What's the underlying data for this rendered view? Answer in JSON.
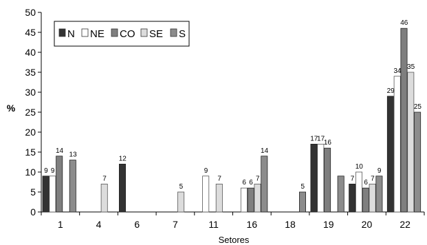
{
  "chart_data": {
    "type": "bar",
    "xlabel": "Setores",
    "ylabel": "%",
    "ylim": [
      0,
      50
    ],
    "yticks": [
      0,
      5,
      10,
      15,
      20,
      25,
      30,
      35,
      40,
      45,
      50
    ],
    "grid": false,
    "legend_position": "top-left",
    "categories": [
      "1",
      "4",
      "6",
      "7",
      "11",
      "16",
      "18",
      "19",
      "20",
      "22"
    ],
    "series": [
      {
        "name": "N",
        "color": "#333333",
        "values": [
          9,
          0,
          12,
          0,
          0,
          0,
          0,
          17,
          7,
          29
        ]
      },
      {
        "name": "NE",
        "color": "#ffffff",
        "values": [
          9,
          0,
          0,
          0,
          9,
          6,
          0,
          17,
          10,
          34
        ]
      },
      {
        "name": "CO",
        "color": "#7f7f7f",
        "values": [
          14,
          0,
          0,
          0,
          0,
          6,
          0,
          16,
          6,
          46
        ]
      },
      {
        "name": "SE",
        "color": "#dcdcdc",
        "values": [
          0,
          7,
          0,
          5,
          7,
          7,
          0,
          0,
          7,
          35
        ]
      },
      {
        "name": "S",
        "color": "#8c8c8c",
        "values": [
          13,
          0,
          0,
          0,
          0,
          14,
          5,
          9,
          9,
          25
        ]
      }
    ],
    "labels_shown": [
      [
        true,
        false,
        true,
        false,
        false,
        false,
        false,
        true,
        true,
        true
      ],
      [
        true,
        false,
        false,
        false,
        true,
        true,
        false,
        true,
        true,
        true
      ],
      [
        true,
        false,
        false,
        false,
        false,
        true,
        false,
        true,
        true,
        true
      ],
      [
        false,
        true,
        false,
        true,
        true,
        true,
        false,
        false,
        true,
        true
      ],
      [
        true,
        false,
        false,
        false,
        false,
        true,
        true,
        false,
        true,
        true
      ]
    ]
  }
}
